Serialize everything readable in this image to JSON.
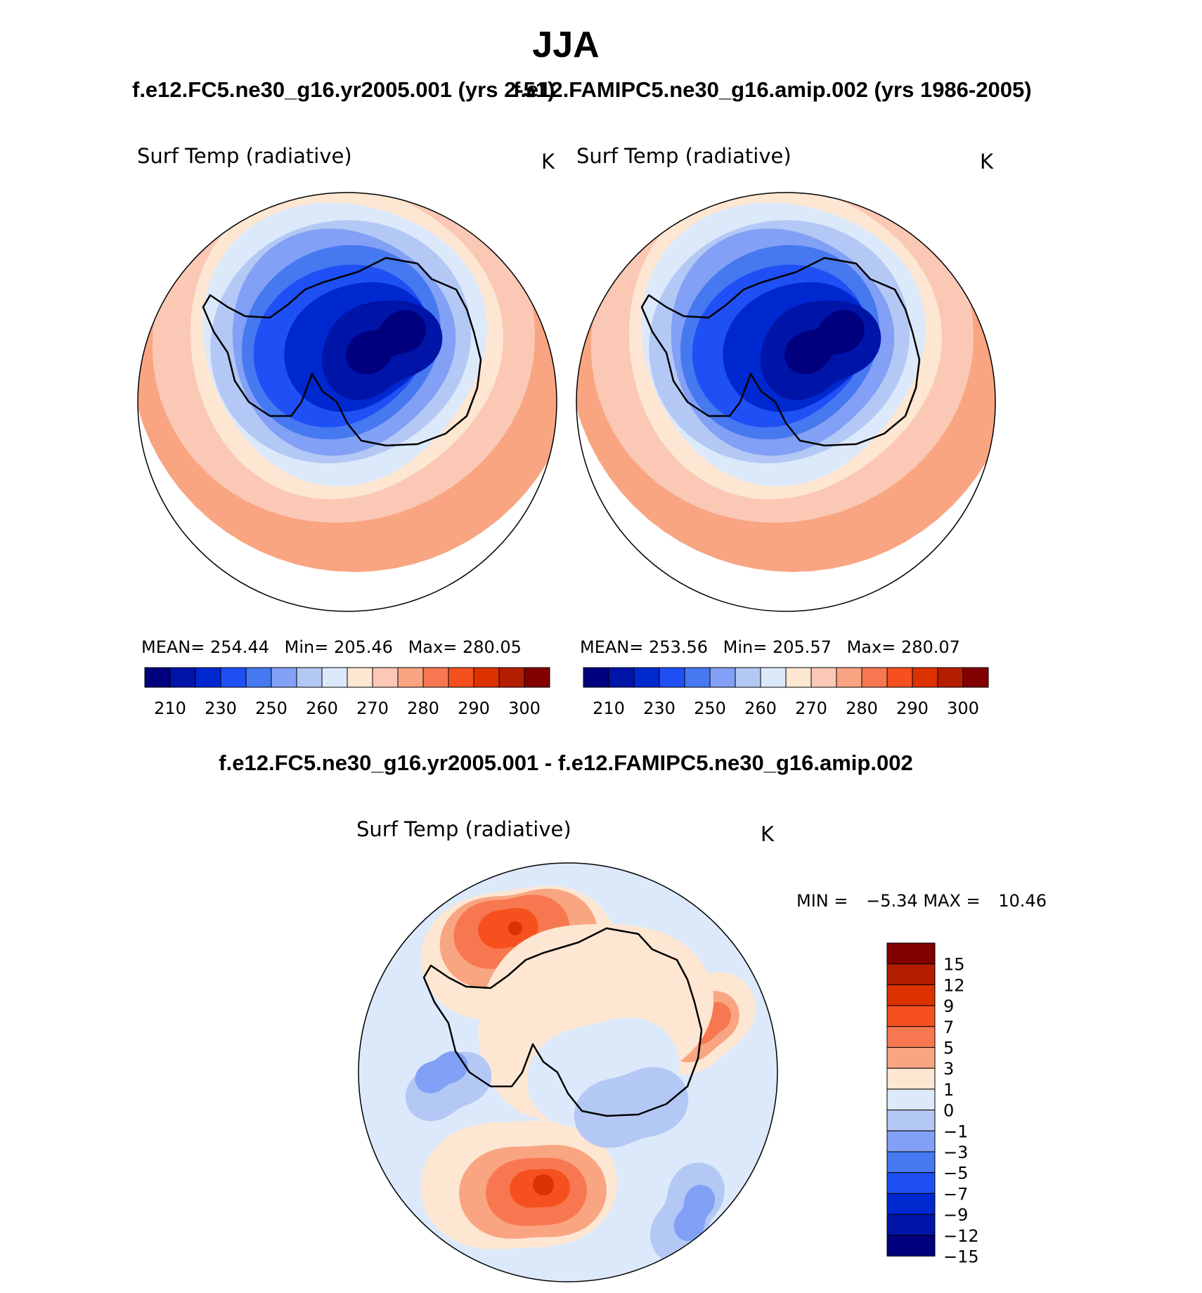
{
  "figure": {
    "title": "JJA",
    "subtitle_left": "f.e12.FC5.ne30_g16.yr2005.001 (yrs 2-51)",
    "subtitle_right": "f.e12.FAMIPC5.ne30_g16.amip.002 (yrs 1986-2005)",
    "diff_title": "f.e12.FC5.ne30_g16.yr2005.001 - f.e12.FAMIPC5.ne30_g16.amip.002"
  },
  "chart_data": [
    {
      "type": "heatmap",
      "projection": "south-polar-stereographic",
      "variable": "Surf Temp (radiative)",
      "units": "K",
      "stats": {
        "mean_label": "MEAN=",
        "mean": "254.44",
        "min_label": "Min=",
        "min": "205.46",
        "max_label": "Max=",
        "max": "280.05"
      },
      "colorbar": {
        "orientation": "horizontal",
        "tick_labels": [
          "210",
          "230",
          "250",
          "260",
          "270",
          "280",
          "290",
          "300"
        ],
        "colors": [
          "#00007f",
          "#0014a8",
          "#0028d0",
          "#1e50f5",
          "#4678f0",
          "#82a0f5",
          "#b4c8f5",
          "#dce9fa",
          "#fde6d2",
          "#fac8b4",
          "#f9a582",
          "#f77850",
          "#f6501e",
          "#dc3200",
          "#b41e00",
          "#820000"
        ]
      }
    },
    {
      "type": "heatmap",
      "projection": "south-polar-stereographic",
      "variable": "Surf Temp (radiative)",
      "units": "K",
      "stats": {
        "mean_label": "MEAN=",
        "mean": "253.56",
        "min_label": "Min=",
        "min": "205.57",
        "max_label": "Max=",
        "max": "280.07"
      },
      "colorbar": {
        "orientation": "horizontal",
        "tick_labels": [
          "210",
          "230",
          "250",
          "260",
          "270",
          "280",
          "290",
          "300"
        ],
        "colors": [
          "#00007f",
          "#0014a8",
          "#0028d0",
          "#1e50f5",
          "#4678f0",
          "#82a0f5",
          "#b4c8f5",
          "#dce9fa",
          "#fde6d2",
          "#fac8b4",
          "#f9a582",
          "#f77850",
          "#f6501e",
          "#dc3200",
          "#b41e00",
          "#820000"
        ]
      }
    },
    {
      "type": "heatmap",
      "projection": "south-polar-stereographic",
      "variable": "Surf Temp (radiative)",
      "units": "K",
      "stats": {
        "min_label": "MIN =",
        "min": "−5.34",
        "max_label": "MAX =",
        "max": "10.46"
      },
      "colorbar": {
        "orientation": "vertical",
        "tick_labels": [
          "15",
          "12",
          "9",
          "7",
          "5",
          "3",
          "1",
          "0",
          "−1",
          "−3",
          "−5",
          "−7",
          "−9",
          "−12",
          "−15"
        ],
        "colors": [
          "#820000",
          "#b41e00",
          "#dc3200",
          "#f6501e",
          "#f77850",
          "#f9a582",
          "#fde6d2",
          "#dce9fa",
          "#b4c8f5",
          "#82a0f5",
          "#4678f0",
          "#1e50f5",
          "#0028d0",
          "#0014a8",
          "#00007f"
        ]
      }
    }
  ]
}
